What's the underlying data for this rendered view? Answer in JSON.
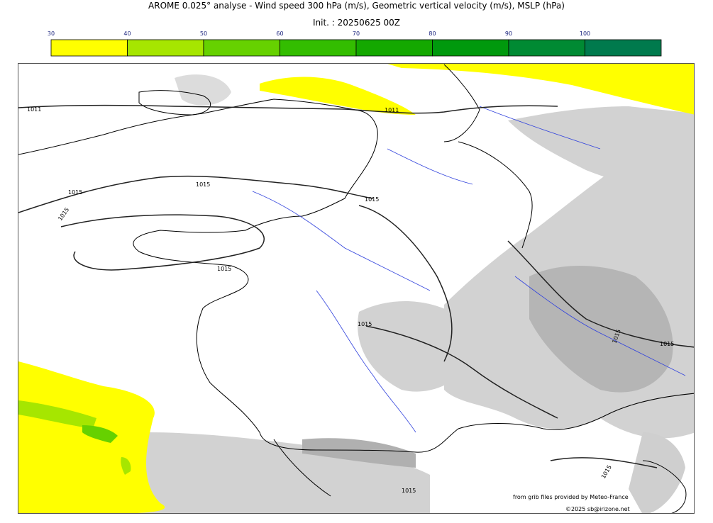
{
  "header": {
    "title": "AROME 0.025° analyse - Wind speed 300 hPa (m/s), Geometric vertical velocity (m/s), MSLP (hPa)",
    "subtitle": "Init. : 20250625 00Z"
  },
  "colorbar": {
    "ticks": [
      "30",
      "40",
      "50",
      "60",
      "70",
      "80",
      "90",
      "100"
    ],
    "colors": [
      "#ffff00",
      "#a6e600",
      "#66d100",
      "#33bd00",
      "#14a800",
      "#00990d",
      "#008a33",
      "#007a4d"
    ]
  },
  "map": {
    "isobar_labels": [
      {
        "value": "1011",
        "id": "1011-west"
      },
      {
        "value": "1011",
        "id": "1011-north"
      },
      {
        "value": "1015",
        "id": "1015-atl-a"
      },
      {
        "value": "1015",
        "id": "1015-atl-b"
      },
      {
        "value": "1015",
        "id": "1015-channel"
      },
      {
        "value": "1015",
        "id": "1015-paris"
      },
      {
        "value": "1015",
        "id": "1015-brittany"
      },
      {
        "value": "1015",
        "id": "1015-center"
      },
      {
        "value": "1015",
        "id": "1015-alps"
      },
      {
        "value": "1015",
        "id": "1015-italy"
      },
      {
        "value": "1015",
        "id": "1015-med"
      },
      {
        "value": "1015",
        "id": "1015-south"
      }
    ],
    "colors": {
      "jet_low": "#ffff00",
      "jet_mid": "#a6e600",
      "jet_high": "#66d100",
      "vertical_velocity": "#cfcfcf",
      "vertical_velocity_dark": "#b5b5b5",
      "rivers": "#3344dd",
      "coast": "#000000",
      "isobar": "#222222"
    }
  },
  "footer": {
    "source": "from grib files provided by Meteo-France",
    "copyright": "©2025 sb@irizone.net"
  }
}
